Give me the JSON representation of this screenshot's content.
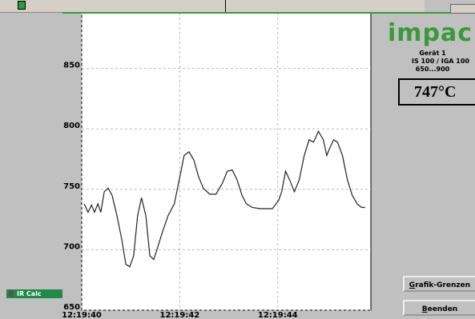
{
  "window": {
    "logo": "impac",
    "device": "Gerät 1",
    "model": "IS 100 / IGA 100",
    "range": "650...900",
    "reading": "747°C",
    "buttons": [
      "Grafik-Grenzen",
      "Beenden"
    ]
  },
  "taskbar": {
    "item": "IR Calc"
  },
  "chart_data": {
    "type": "line",
    "color": "#222222",
    "grid": true,
    "x": [
      40.05,
      40.13,
      40.2,
      40.26,
      40.33,
      40.39,
      40.46,
      40.54,
      40.62,
      40.72,
      40.82,
      40.9,
      40.98,
      41.06,
      41.14,
      41.22,
      41.31,
      41.39,
      41.47,
      41.55,
      41.65,
      41.76,
      41.89,
      41.99,
      42.09,
      42.19,
      42.29,
      42.38,
      42.48,
      42.61,
      42.74,
      42.87,
      42.97,
      43.07,
      43.17,
      43.27,
      43.36,
      43.48,
      43.64,
      43.89,
      44.02,
      44.08,
      44.16,
      44.24,
      44.34,
      44.44,
      44.54,
      44.64,
      44.73,
      44.83,
      44.93,
      45.0,
      45.06,
      45.14,
      45.22,
      45.32,
      45.42,
      45.52,
      45.62,
      45.71,
      45.78
    ],
    "values": [
      738,
      731,
      737,
      731,
      738,
      731,
      748,
      751,
      745,
      728,
      708,
      688,
      686,
      695,
      728,
      743,
      728,
      695,
      692,
      702,
      715,
      728,
      738,
      758,
      778,
      781,
      774,
      761,
      751,
      746,
      746,
      755,
      765,
      766,
      758,
      745,
      738,
      735,
      734,
      734,
      741,
      748,
      765,
      758,
      748,
      758,
      778,
      791,
      789,
      798,
      791,
      778,
      784,
      791,
      789,
      778,
      758,
      745,
      738,
      735,
      735
    ],
    "xlim": [
      40,
      45.9
    ],
    "ylim": [
      650,
      900
    ],
    "xticks": [
      {
        "value": 40,
        "label": "12:19:40"
      },
      {
        "value": 42,
        "label": "12:19:42"
      },
      {
        "value": 44,
        "label": "12:19:44"
      }
    ],
    "yticks": [
      650,
      700,
      750,
      800,
      850
    ]
  }
}
